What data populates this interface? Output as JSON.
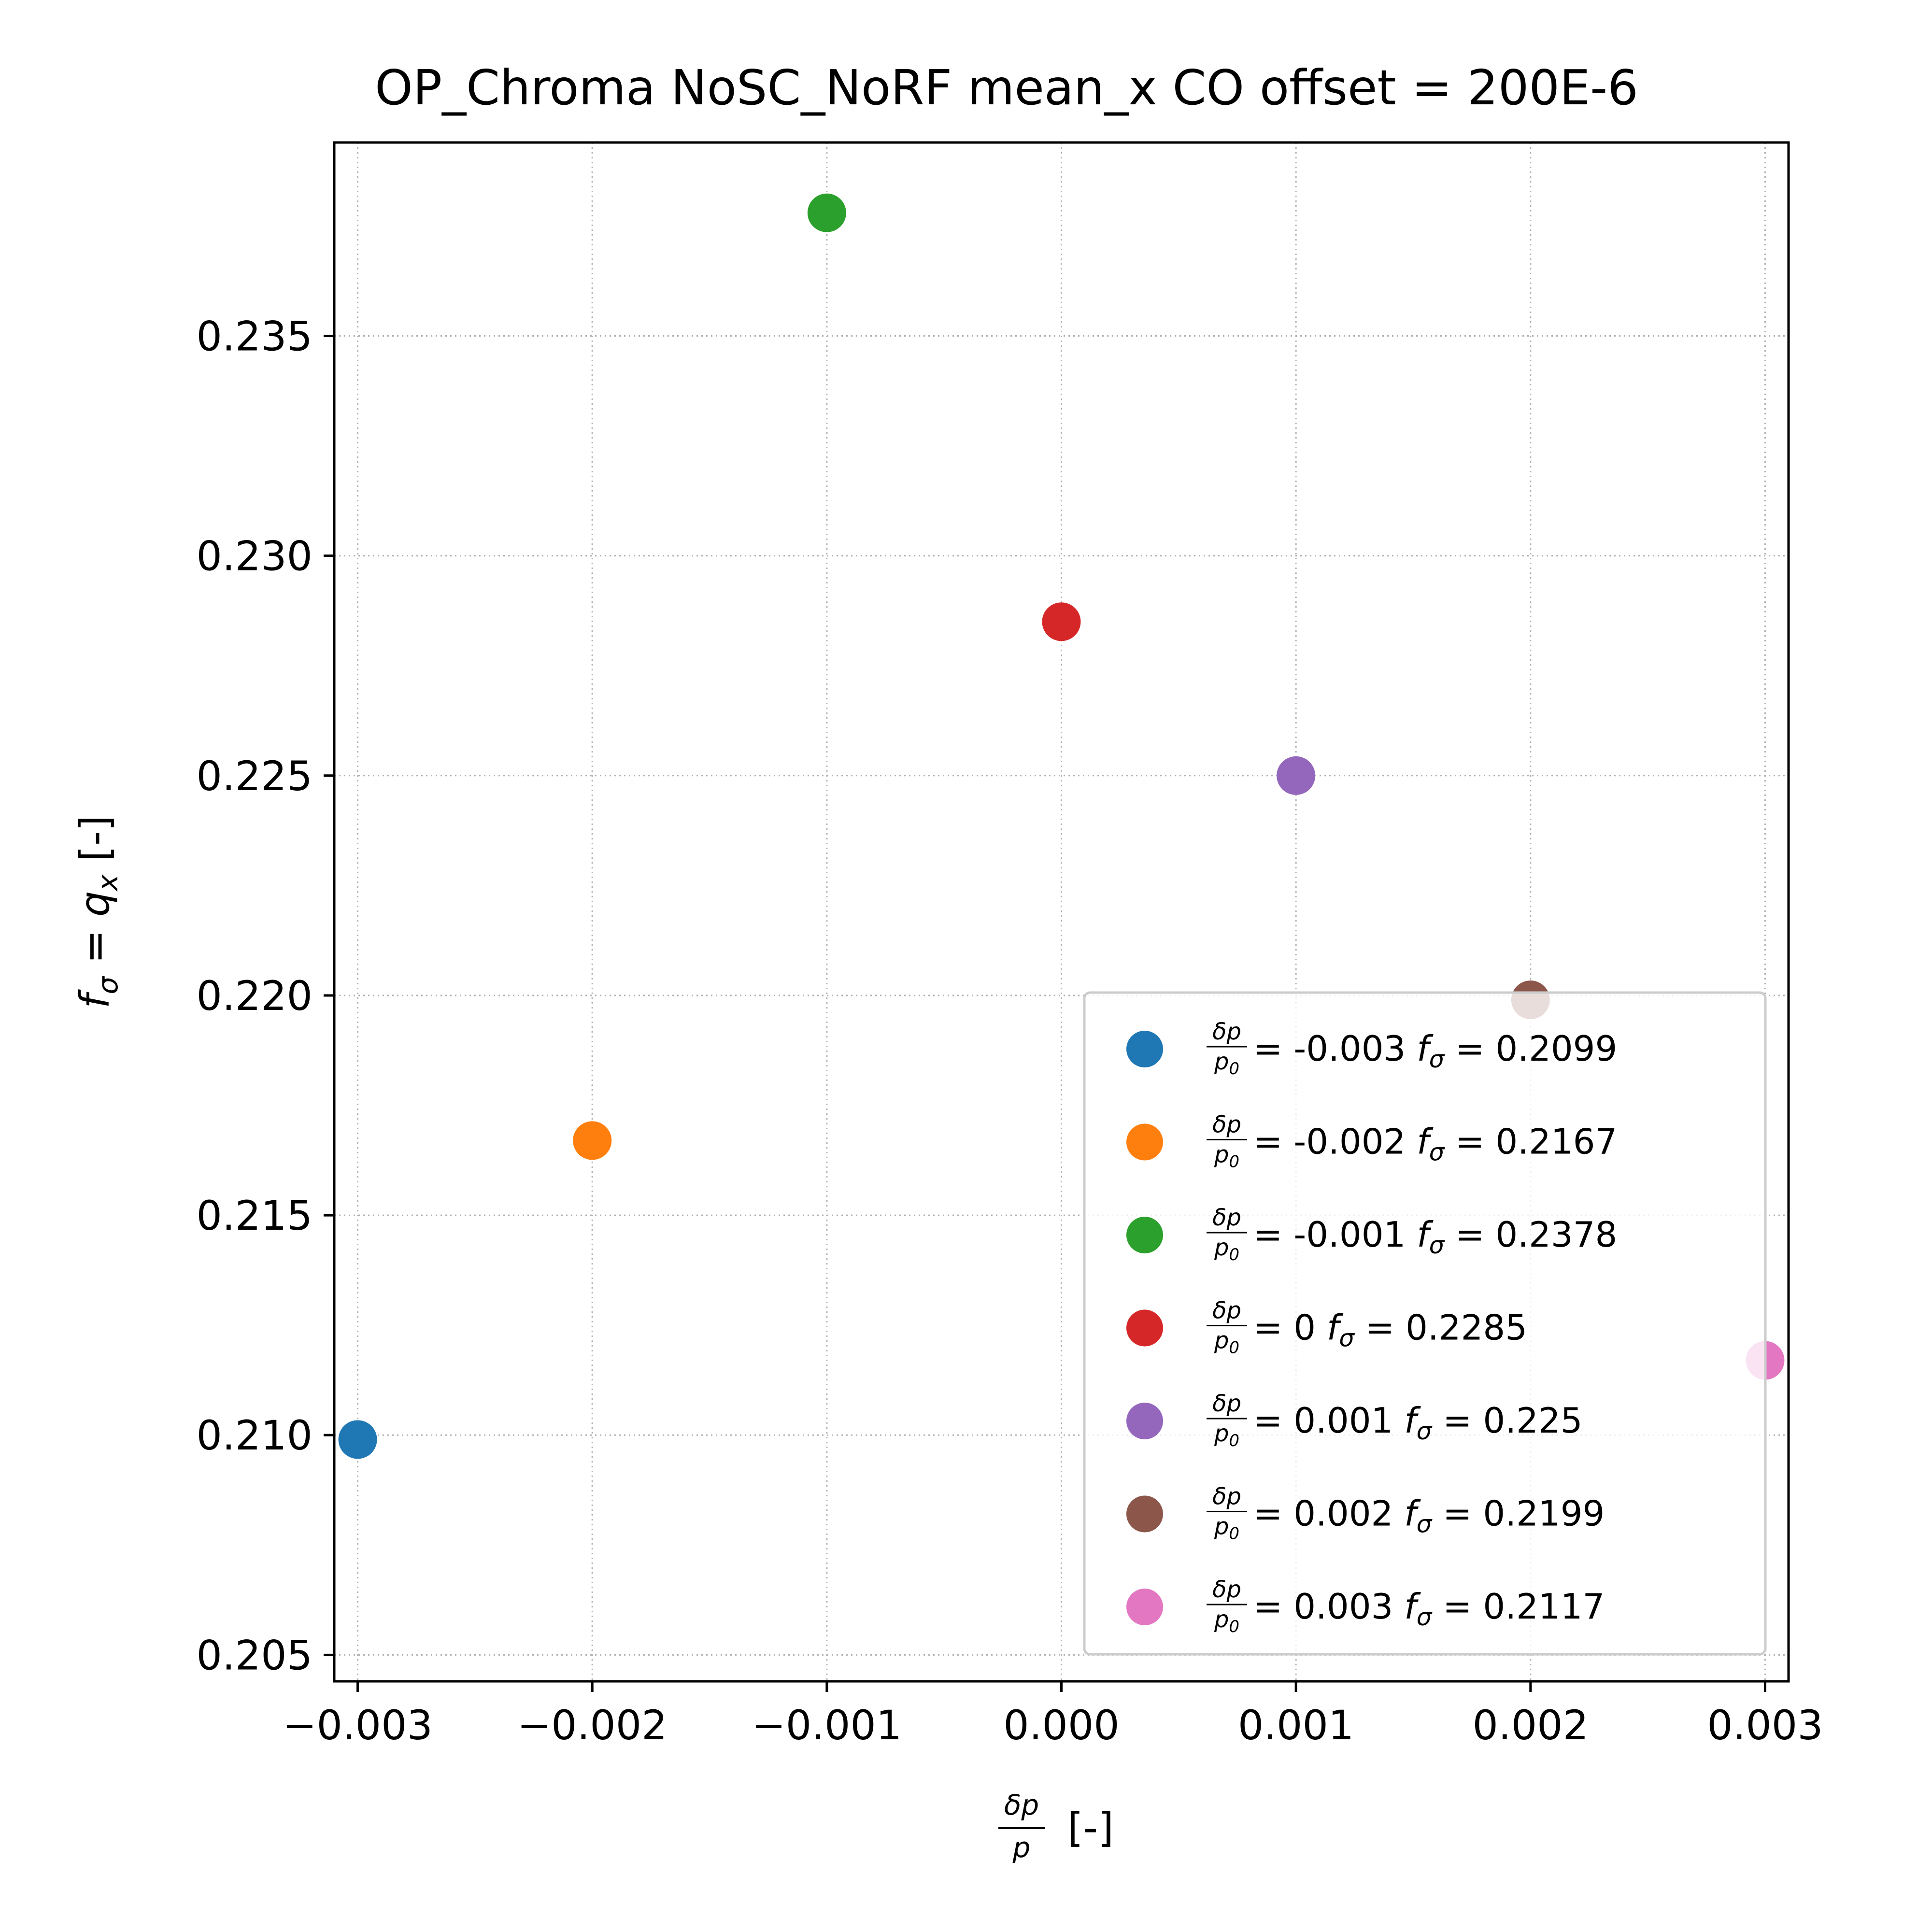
{
  "chart_data": {
    "type": "scatter",
    "title": "OP_Chroma NoSC_NoRF mean_x CO offset = 200E-6",
    "xlabel": {
      "frac_num": "δp",
      "frac_den": "p",
      "suffix": "[-]"
    },
    "ylabel": {
      "lhs": "f",
      "lhs_sub": "σ",
      "eq": "=",
      "rhs": "q",
      "rhs_sub": "x",
      "suffix": "[-]"
    },
    "xlim": [
      -0.0031,
      0.0031
    ],
    "ylim": [
      0.2044,
      0.2394
    ],
    "xticks": [
      -0.003,
      -0.002,
      -0.001,
      0.0,
      0.001,
      0.002,
      0.003
    ],
    "xtick_labels": [
      "−0.003",
      "−0.002",
      "−0.001",
      "0.000",
      "0.001",
      "0.002",
      "0.003"
    ],
    "yticks": [
      0.205,
      0.21,
      0.215,
      0.22,
      0.225,
      0.23,
      0.235
    ],
    "ytick_labels": [
      "0.205",
      "0.210",
      "0.215",
      "0.220",
      "0.225",
      "0.230",
      "0.235"
    ],
    "grid": true,
    "legend_position": "lower right",
    "legend_frac": {
      "num": "δp",
      "den": "p",
      "den_sub": "0"
    },
    "series": [
      {
        "x": -0.003,
        "y": 0.2099,
        "color": "#1f77b4",
        "label_dp": "-0.003",
        "label_fs": "0.2099"
      },
      {
        "x": -0.002,
        "y": 0.2167,
        "color": "#ff7f0e",
        "label_dp": "-0.002",
        "label_fs": "0.2167"
      },
      {
        "x": -0.001,
        "y": 0.2378,
        "color": "#2ca02c",
        "label_dp": "-0.001",
        "label_fs": "0.2378"
      },
      {
        "x": 0.0,
        "y": 0.2285,
        "color": "#d62728",
        "label_dp": "0",
        "label_fs": "0.2285"
      },
      {
        "x": 0.001,
        "y": 0.225,
        "color": "#9467bd",
        "label_dp": "0.001",
        "label_fs": "0.225"
      },
      {
        "x": 0.002,
        "y": 0.2199,
        "color": "#8c564b",
        "label_dp": "0.002",
        "label_fs": "0.2199"
      },
      {
        "x": 0.003,
        "y": 0.2117,
        "color": "#e377c2",
        "label_dp": "0.003",
        "label_fs": "0.2117"
      }
    ]
  }
}
